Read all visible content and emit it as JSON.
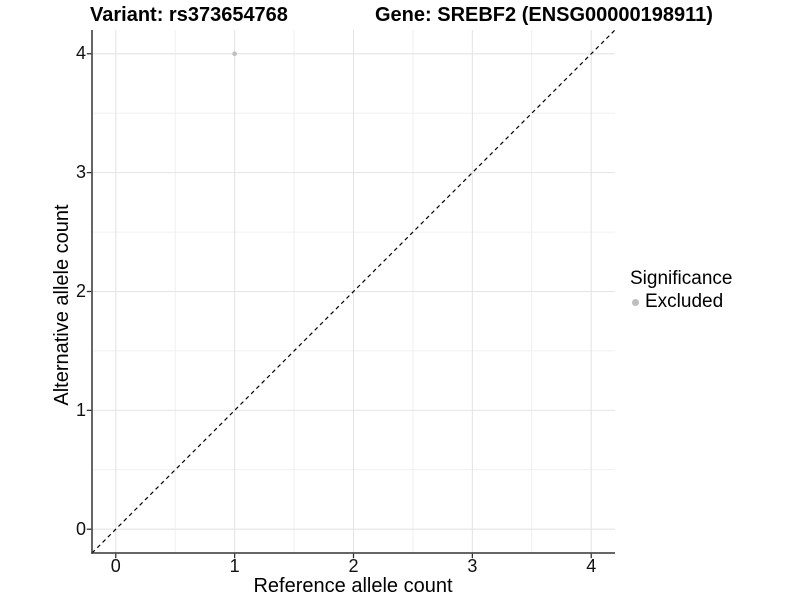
{
  "titles": {
    "variant": "Variant: rs373654768",
    "gene": "Gene: SREBF2 (ENSG00000198911)"
  },
  "axes": {
    "x_label": "Reference allele count",
    "y_label": "Alternative allele count"
  },
  "legend": {
    "title": "Significance",
    "items": [
      {
        "label": "Excluded",
        "color": "#bebebe"
      }
    ]
  },
  "chart_data": {
    "type": "scatter",
    "title_left": "Variant: rs373654768",
    "title_right": "Gene: SREBF2 (ENSG00000198911)",
    "xlabel": "Reference allele count",
    "ylabel": "Alternative allele count",
    "xlim": [
      -0.2,
      4.2
    ],
    "ylim": [
      -0.2,
      4.2
    ],
    "x_ticks": [
      0,
      1,
      2,
      3,
      4
    ],
    "y_ticks": [
      0,
      1,
      2,
      3,
      4
    ],
    "x_minor": [
      0.5,
      1.5,
      2.5,
      3.5
    ],
    "y_minor": [
      0.5,
      1.5,
      2.5,
      3.5
    ],
    "grid": "major+minor",
    "legend_title": "Significance",
    "legend_position": "right",
    "series": [
      {
        "name": "Excluded",
        "color": "#bebebe",
        "points": [
          {
            "x": 1,
            "y": 4
          }
        ]
      }
    ],
    "reference_line": {
      "slope": 1,
      "intercept": 0,
      "style": "dashed",
      "color": "#000000"
    },
    "colors": {
      "background": "#ffffff",
      "axis": "#333333",
      "grid_major": "#e4e4e4",
      "grid_minor": "#f0f0f0",
      "tick_text": "#111111",
      "point": "#bebebe"
    }
  }
}
